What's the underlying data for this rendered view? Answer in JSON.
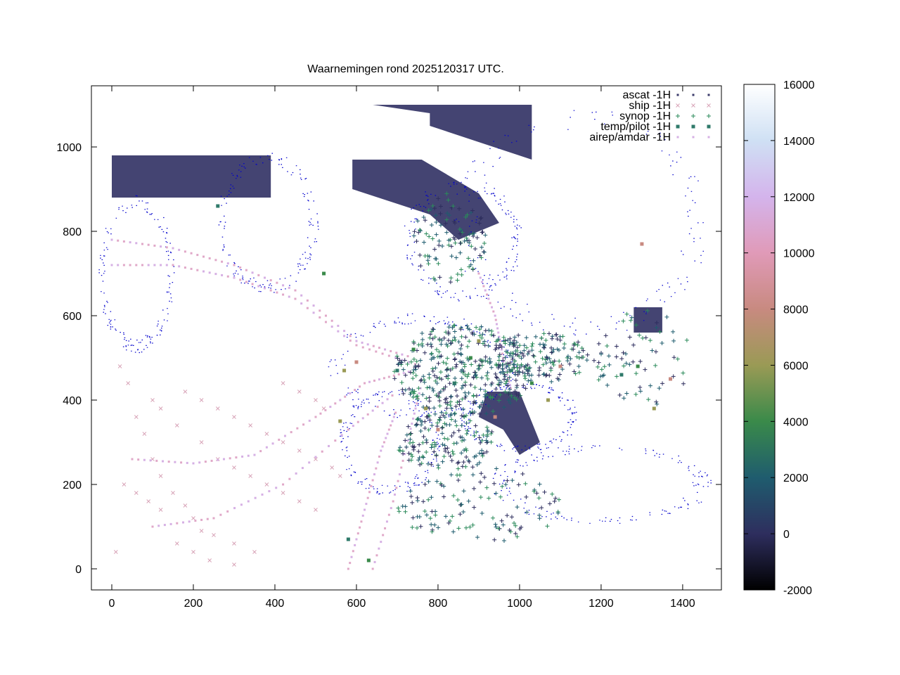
{
  "chart_data": {
    "type": "scatter",
    "title": "Waarnemingen rond 2025120317 UTC.",
    "xlabel": "",
    "ylabel": "",
    "xlim": [
      -50,
      1495
    ],
    "ylim": [
      -50,
      1145
    ],
    "x_ticks": [
      {
        "value": 0,
        "label": "0"
      },
      {
        "value": 200,
        "label": "200"
      },
      {
        "value": 400,
        "label": "400"
      },
      {
        "value": 600,
        "label": "600"
      },
      {
        "value": 800,
        "label": "800"
      },
      {
        "value": 1000,
        "label": "1000"
      },
      {
        "value": 1200,
        "label": "1200"
      },
      {
        "value": 1400,
        "label": "1400"
      }
    ],
    "y_ticks": [
      {
        "value": 0,
        "label": "0"
      },
      {
        "value": 200,
        "label": "200"
      },
      {
        "value": 400,
        "label": "400"
      },
      {
        "value": 600,
        "label": "600"
      },
      {
        "value": 800,
        "label": "800"
      },
      {
        "value": 1000,
        "label": "1000"
      }
    ],
    "grid": false,
    "legend_position": "top-right",
    "colorbar": {
      "min": -2000,
      "max": 16000,
      "ticks": [
        {
          "value": 16000,
          "label": "16000"
        },
        {
          "value": 14000,
          "label": "14000"
        },
        {
          "value": 12000,
          "label": "12000"
        },
        {
          "value": 10000,
          "label": "10000"
        },
        {
          "value": 8000,
          "label": "8000"
        },
        {
          "value": 6000,
          "label": "6000"
        },
        {
          "value": 4000,
          "label": "4000"
        },
        {
          "value": 2000,
          "label": "2000"
        },
        {
          "value": 0,
          "label": "0"
        },
        {
          "value": -2000,
          "label": "-2000"
        }
      ],
      "stops": [
        {
          "value": -2000,
          "color": "#000000"
        },
        {
          "value": 0,
          "color": "#2e2e5e"
        },
        {
          "value": 2000,
          "color": "#1f5c6e"
        },
        {
          "value": 4000,
          "color": "#3a8a4a"
        },
        {
          "value": 6000,
          "color": "#9a9a55"
        },
        {
          "value": 8000,
          "color": "#c88a80"
        },
        {
          "value": 10000,
          "color": "#e09ab8"
        },
        {
          "value": 12000,
          "color": "#d4b4ec"
        },
        {
          "value": 14000,
          "color": "#cfe0f4"
        },
        {
          "value": 16000,
          "color": "#ffffff"
        }
      ]
    },
    "series": [
      {
        "name": "ascat -1H",
        "marker": "dot",
        "color": "#3a3a6a"
      },
      {
        "name": "ship -1H",
        "marker": "x",
        "color": "#d8a4b8"
      },
      {
        "name": "synop -1H",
        "marker": "plus",
        "color": "#2a8a5a"
      },
      {
        "name": "temp/pilot -1H",
        "marker": "square",
        "color": "#2f7a6a"
      },
      {
        "name": "airep/amdar -1H",
        "marker": "dot",
        "color": "#d6b0e4"
      }
    ],
    "coastline_color": "#0000cc",
    "ascat_swaths": [
      {
        "points": [
          [
            0,
            980
          ],
          [
            390,
            980
          ],
          [
            390,
            880
          ],
          [
            0,
            880
          ]
        ]
      },
      {
        "points": [
          [
            580,
            1100
          ],
          [
            1030,
            1100
          ],
          [
            1030,
            970
          ],
          [
            780,
            1050
          ],
          [
            780,
            1080
          ],
          [
            640,
            1100
          ]
        ]
      },
      {
        "points": [
          [
            590,
            970
          ],
          [
            760,
            970
          ],
          [
            900,
            890
          ],
          [
            950,
            820
          ],
          [
            850,
            780
          ],
          [
            780,
            840
          ],
          [
            590,
            900
          ]
        ]
      },
      {
        "points": [
          [
            1280,
            620
          ],
          [
            1350,
            620
          ],
          [
            1350,
            560
          ],
          [
            1280,
            560
          ]
        ]
      },
      {
        "points": [
          [
            920,
            420
          ],
          [
            1000,
            420
          ],
          [
            1050,
            300
          ],
          [
            1000,
            270
          ],
          [
            960,
            330
          ],
          [
            900,
            360
          ]
        ]
      }
    ],
    "airep_tracks": [
      {
        "points": [
          [
            0,
            780
          ],
          [
            150,
            760
          ],
          [
            300,
            720
          ],
          [
            450,
            660
          ],
          [
            600,
            540
          ],
          [
            740,
            500
          ]
        ]
      },
      {
        "points": [
          [
            0,
            720
          ],
          [
            150,
            720
          ],
          [
            300,
            690
          ],
          [
            450,
            640
          ],
          [
            600,
            530
          ],
          [
            760,
            480
          ]
        ]
      },
      {
        "points": [
          [
            50,
            260
          ],
          [
            200,
            250
          ],
          [
            350,
            270
          ],
          [
            500,
            360
          ],
          [
            620,
            440
          ],
          [
            740,
            470
          ]
        ]
      },
      {
        "points": [
          [
            100,
            100
          ],
          [
            250,
            120
          ],
          [
            420,
            200
          ],
          [
            580,
            330
          ],
          [
            700,
            420
          ]
        ]
      },
      {
        "points": [
          [
            580,
            0
          ],
          [
            620,
            140
          ],
          [
            660,
            280
          ],
          [
            700,
            380
          ]
        ]
      },
      {
        "points": [
          [
            640,
            0
          ],
          [
            690,
            160
          ],
          [
            730,
            320
          ],
          [
            760,
            440
          ]
        ]
      },
      {
        "points": [
          [
            900,
            700
          ],
          [
            940,
            600
          ],
          [
            960,
            500
          ],
          [
            980,
            420
          ]
        ]
      }
    ],
    "synop_clusters": [
      {
        "cx": 860,
        "cy": 470,
        "rx": 170,
        "ry": 110,
        "n": 380
      },
      {
        "cx": 1050,
        "cy": 500,
        "rx": 120,
        "ry": 60,
        "n": 160
      },
      {
        "cx": 820,
        "cy": 300,
        "rx": 120,
        "ry": 70,
        "n": 160
      },
      {
        "cx": 900,
        "cy": 150,
        "rx": 200,
        "ry": 90,
        "n": 120
      },
      {
        "cx": 830,
        "cy": 780,
        "rx": 90,
        "ry": 110,
        "n": 110
      },
      {
        "cx": 1300,
        "cy": 500,
        "rx": 120,
        "ry": 120,
        "n": 70
      }
    ],
    "ship_points": [
      [
        20,
        480
      ],
      [
        40,
        440
      ],
      [
        60,
        360
      ],
      [
        80,
        320
      ],
      [
        100,
        260
      ],
      [
        120,
        220
      ],
      [
        150,
        180
      ],
      [
        180,
        150
      ],
      [
        200,
        120
      ],
      [
        220,
        90
      ],
      [
        250,
        80
      ],
      [
        300,
        60
      ],
      [
        350,
        40
      ],
      [
        100,
        400
      ],
      [
        120,
        380
      ],
      [
        160,
        340
      ],
      [
        220,
        300
      ],
      [
        260,
        260
      ],
      [
        300,
        240
      ],
      [
        340,
        220
      ],
      [
        380,
        200
      ],
      [
        420,
        180
      ],
      [
        460,
        160
      ],
      [
        500,
        140
      ],
      [
        180,
        420
      ],
      [
        220,
        400
      ],
      [
        260,
        380
      ],
      [
        300,
        360
      ],
      [
        340,
        340
      ],
      [
        380,
        320
      ],
      [
        420,
        300
      ],
      [
        460,
        280
      ],
      [
        500,
        260
      ],
      [
        540,
        240
      ],
      [
        560,
        220
      ],
      [
        30,
        200
      ],
      [
        60,
        180
      ],
      [
        90,
        160
      ],
      [
        120,
        140
      ],
      [
        160,
        60
      ],
      [
        420,
        440
      ],
      [
        460,
        420
      ],
      [
        500,
        400
      ],
      [
        520,
        380
      ],
      [
        200,
        40
      ],
      [
        240,
        20
      ],
      [
        300,
        10
      ],
      [
        10,
        40
      ]
    ],
    "temp_points": [
      [
        260,
        860
      ],
      [
        520,
        700
      ],
      [
        570,
        470
      ],
      [
        600,
        490
      ],
      [
        700,
        470
      ],
      [
        740,
        520
      ],
      [
        770,
        380
      ],
      [
        800,
        330
      ],
      [
        840,
        440
      ],
      [
        880,
        500
      ],
      [
        900,
        540
      ],
      [
        940,
        360
      ],
      [
        980,
        470
      ],
      [
        1030,
        440
      ],
      [
        1070,
        400
      ],
      [
        1100,
        480
      ],
      [
        1250,
        460
      ],
      [
        1290,
        480
      ],
      [
        1330,
        380
      ],
      [
        1370,
        450
      ],
      [
        580,
        70
      ],
      [
        630,
        20
      ],
      [
        560,
        350
      ],
      [
        1300,
        770
      ]
    ]
  }
}
